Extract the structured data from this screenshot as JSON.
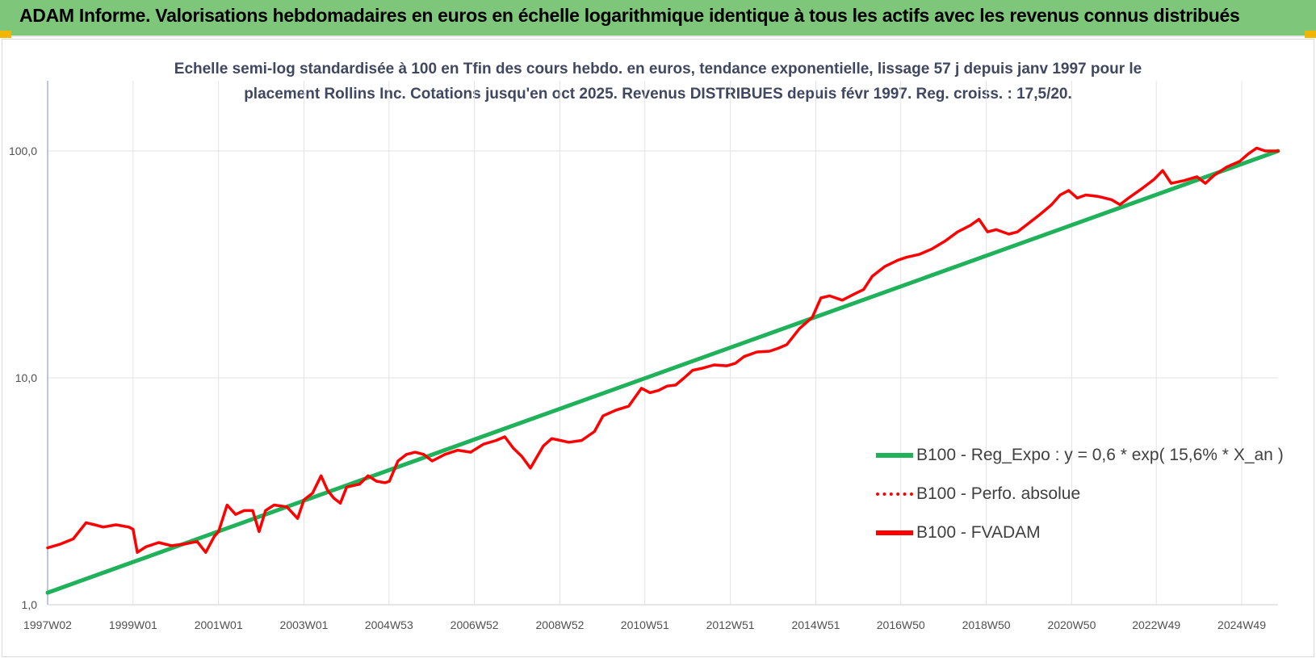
{
  "header": {
    "title": "ADAM Informe. Valorisations hebdomadaires en euros en échelle logarithmique identique à tous les actifs avec les revenus connus distribués",
    "background_color": "#7dc67a",
    "corner_color": "#f2b600"
  },
  "chart_data": {
    "type": "line",
    "title_line1": "Echelle semi-log standardisée à 100 en Tfin des cours hebdo. en euros, tendance exponentielle, lissage 57 j depuis janv 1997 pour le",
    "title_line2": "placement Rollins Inc. Cotations jusqu'en oct 2025. Revenus DISTRIBUES depuis févr 1997. Reg. croiss. : 17,5/20.",
    "y_scale": "log",
    "ylim": [
      1,
      200
    ],
    "xlim": [
      1997.0,
      2025.8
    ],
    "grid": "on",
    "legend_position": "bottom-right",
    "y_ticks": [
      {
        "value": 1,
        "label": "1,0"
      },
      {
        "value": 10,
        "label": "10,0"
      },
      {
        "value": 100,
        "label": "100,0"
      }
    ],
    "x_ticks": [
      {
        "value": 1997.0,
        "label": "1997W02"
      },
      {
        "value": 1999.0,
        "label": "1999W01"
      },
      {
        "value": 2001.0,
        "label": "2001W01"
      },
      {
        "value": 2003.0,
        "label": "2003W01"
      },
      {
        "value": 2004.99,
        "label": "2004W53"
      },
      {
        "value": 2006.99,
        "label": "2006W52"
      },
      {
        "value": 2008.99,
        "label": "2008W52"
      },
      {
        "value": 2010.98,
        "label": "2010W51"
      },
      {
        "value": 2012.98,
        "label": "2012W51"
      },
      {
        "value": 2014.98,
        "label": "2014W51"
      },
      {
        "value": 2016.97,
        "label": "2016W50"
      },
      {
        "value": 2018.97,
        "label": "2018W50"
      },
      {
        "value": 2020.97,
        "label": "2020W50"
      },
      {
        "value": 2022.95,
        "label": "2022W49"
      },
      {
        "value": 2024.95,
        "label": "2024W49"
      }
    ],
    "series": [
      {
        "name": "B100 - Reg_Expo : y = 0,6 * exp( 15,6% *  X_an )",
        "color": "#1fb25a",
        "style": "solid",
        "x": [
          1997.0,
          2025.8
        ],
        "values": [
          1.13,
          100
        ]
      },
      {
        "name": "B100 - Perfo. absolue",
        "color": "#ff0000",
        "style": "dotted",
        "x": [],
        "values": []
      },
      {
        "name": "B100 - FVADAM",
        "color": "#ff0000",
        "style": "solid",
        "x": [
          1997.0,
          1997.3,
          1997.6,
          1997.9,
          1998.1,
          1998.3,
          1998.6,
          1998.9,
          1999.0,
          1999.1,
          1999.3,
          1999.6,
          1999.9,
          2000.2,
          2000.5,
          2000.7,
          2000.9,
          2001.0,
          2001.2,
          2001.4,
          2001.6,
          2001.8,
          2001.95,
          2002.1,
          2002.3,
          2002.6,
          2002.85,
          2003.0,
          2003.2,
          2003.4,
          2003.55,
          2003.7,
          2003.85,
          2004.0,
          2004.3,
          2004.5,
          2004.7,
          2004.9,
          2005.0,
          2005.2,
          2005.4,
          2005.6,
          2005.8,
          2006.0,
          2006.3,
          2006.6,
          2006.9,
          2007.2,
          2007.5,
          2007.7,
          2007.9,
          2008.1,
          2008.3,
          2008.6,
          2008.8,
          2009.0,
          2009.2,
          2009.5,
          2009.8,
          2010.0,
          2010.3,
          2010.6,
          2010.9,
          2011.1,
          2011.3,
          2011.5,
          2011.7,
          2011.9,
          2012.1,
          2012.3,
          2012.6,
          2012.9,
          2013.1,
          2013.3,
          2013.6,
          2013.9,
          2014.1,
          2014.3,
          2014.6,
          2014.9,
          2015.1,
          2015.3,
          2015.6,
          2015.9,
          2016.1,
          2016.3,
          2016.6,
          2016.9,
          2017.1,
          2017.4,
          2017.7,
          2018.0,
          2018.3,
          2018.6,
          2018.8,
          2019.0,
          2019.2,
          2019.5,
          2019.7,
          2019.9,
          2020.2,
          2020.5,
          2020.7,
          2020.9,
          2021.1,
          2021.3,
          2021.6,
          2021.9,
          2022.1,
          2022.3,
          2022.6,
          2022.9,
          2023.1,
          2023.3,
          2023.6,
          2023.9,
          2024.1,
          2024.3,
          2024.6,
          2024.9,
          2025.1,
          2025.3,
          2025.5,
          2025.8
        ],
        "values": [
          1.78,
          1.85,
          1.95,
          2.3,
          2.25,
          2.2,
          2.25,
          2.2,
          2.15,
          1.7,
          1.8,
          1.88,
          1.82,
          1.85,
          1.9,
          1.7,
          2.0,
          2.1,
          2.75,
          2.5,
          2.6,
          2.6,
          2.1,
          2.6,
          2.75,
          2.7,
          2.4,
          2.9,
          3.1,
          3.7,
          3.2,
          2.95,
          2.8,
          3.3,
          3.4,
          3.7,
          3.5,
          3.45,
          3.5,
          4.3,
          4.6,
          4.7,
          4.6,
          4.3,
          4.6,
          4.8,
          4.7,
          5.1,
          5.3,
          5.5,
          4.9,
          4.5,
          4.0,
          5.0,
          5.4,
          5.3,
          5.2,
          5.3,
          5.8,
          6.8,
          7.2,
          7.5,
          9.0,
          8.6,
          8.8,
          9.2,
          9.3,
          10.0,
          10.8,
          11.0,
          11.4,
          11.3,
          11.6,
          12.4,
          13.0,
          13.1,
          13.5,
          14.0,
          16.5,
          18.5,
          22.5,
          23.0,
          22.0,
          23.5,
          24.5,
          28.0,
          31.0,
          33.0,
          34.0,
          35.0,
          37.0,
          40.0,
          44.0,
          47.0,
          50.0,
          44.0,
          45.0,
          43.0,
          44.0,
          47.0,
          52.0,
          58.0,
          64.0,
          67.0,
          62.0,
          64.0,
          63.0,
          61.0,
          58.0,
          62.0,
          68.0,
          75.0,
          82.0,
          72.0,
          74.0,
          77.0,
          72.0,
          78.0,
          85.0,
          90.0,
          97.0,
          103.0,
          100.0,
          100.0
        ]
      }
    ]
  }
}
